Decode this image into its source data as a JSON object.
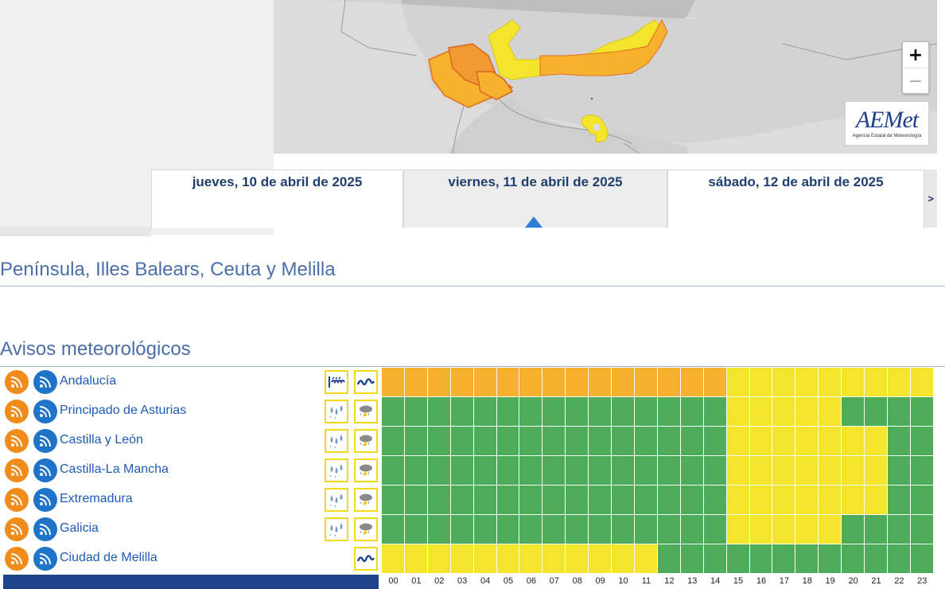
{
  "map": {
    "zoom_in": "+",
    "zoom_out": "−",
    "logo_text": "AEMet",
    "logo_subtitle": "Agencia Estatal de Meteorología"
  },
  "tabs": {
    "days": [
      "jueves, 10 de abril de 2025",
      "viernes, 11 de abril de 2025",
      "sábado, 12 de abril de 2025"
    ],
    "next": ">",
    "selected_index": 1
  },
  "headings": {
    "region": "Península, Illes Balears, Ceuta y Melilla",
    "avisos": "Avisos meteorológicos"
  },
  "icons": {
    "rss_orange": "rss-feed-icon",
    "rss_blue": "rss-feed-icon",
    "costeros": "coastal-wind-wave-icon",
    "lluvia": "rain-icon",
    "tormenta": "thunderstorm-icon"
  },
  "colors": {
    "green": "#4eab5a",
    "yellow": "#f2e52c",
    "orange": "#f6b12e",
    "link": "#1e5bb8"
  },
  "hours": [
    "00",
    "01",
    "02",
    "03",
    "04",
    "05",
    "06",
    "07",
    "08",
    "09",
    "10",
    "11",
    "12",
    "13",
    "14",
    "15",
    "16",
    "17",
    "18",
    "19",
    "20",
    "21",
    "22",
    "23"
  ],
  "rows": [
    {
      "name": "Andalucía",
      "icons": [
        "coastal-wind-wave-icon",
        "coastal-wave-icon"
      ],
      "levels": [
        "o",
        "o",
        "o",
        "o",
        "o",
        "o",
        "o",
        "o",
        "o",
        "o",
        "o",
        "o",
        "o",
        "o",
        "o",
        "y",
        "y",
        "y",
        "y",
        "y",
        "y",
        "y",
        "y",
        "y"
      ]
    },
    {
      "name": "Principado de Asturias",
      "icons": [
        "rain-icon",
        "thunderstorm-icon"
      ],
      "levels": [
        "g",
        "g",
        "g",
        "g",
        "g",
        "g",
        "g",
        "g",
        "g",
        "g",
        "g",
        "g",
        "g",
        "g",
        "g",
        "y",
        "y",
        "y",
        "y",
        "y",
        "g",
        "g",
        "g",
        "g"
      ]
    },
    {
      "name": "Castilla y León",
      "icons": [
        "rain-icon",
        "thunderstorm-icon"
      ],
      "levels": [
        "g",
        "g",
        "g",
        "g",
        "g",
        "g",
        "g",
        "g",
        "g",
        "g",
        "g",
        "g",
        "g",
        "g",
        "g",
        "y",
        "y",
        "y",
        "y",
        "y",
        "y",
        "y",
        "g",
        "g"
      ]
    },
    {
      "name": "Castilla-La Mancha",
      "icons": [
        "rain-icon",
        "thunderstorm-icon"
      ],
      "levels": [
        "g",
        "g",
        "g",
        "g",
        "g",
        "g",
        "g",
        "g",
        "g",
        "g",
        "g",
        "g",
        "g",
        "g",
        "g",
        "y",
        "y",
        "y",
        "y",
        "y",
        "y",
        "y",
        "g",
        "g"
      ]
    },
    {
      "name": "Extremadura",
      "icons": [
        "rain-icon",
        "thunderstorm-icon"
      ],
      "levels": [
        "g",
        "g",
        "g",
        "g",
        "g",
        "g",
        "g",
        "g",
        "g",
        "g",
        "g",
        "g",
        "g",
        "g",
        "g",
        "y",
        "y",
        "y",
        "y",
        "y",
        "y",
        "y",
        "g",
        "g"
      ]
    },
    {
      "name": "Galicia",
      "icons": [
        "rain-icon",
        "thunderstorm-icon"
      ],
      "levels": [
        "g",
        "g",
        "g",
        "g",
        "g",
        "g",
        "g",
        "g",
        "g",
        "g",
        "g",
        "g",
        "g",
        "g",
        "g",
        "y",
        "y",
        "y",
        "y",
        "y",
        "g",
        "g",
        "g",
        "g"
      ]
    },
    {
      "name": "Ciudad de Melilla",
      "icons": [
        "",
        "coastal-wave-icon"
      ],
      "levels": [
        "y",
        "y",
        "y",
        "y",
        "y",
        "y",
        "y",
        "y",
        "y",
        "y",
        "y",
        "y",
        "g",
        "g",
        "g",
        "g",
        "g",
        "g",
        "g",
        "g",
        "g",
        "g",
        "g",
        "g"
      ]
    }
  ]
}
